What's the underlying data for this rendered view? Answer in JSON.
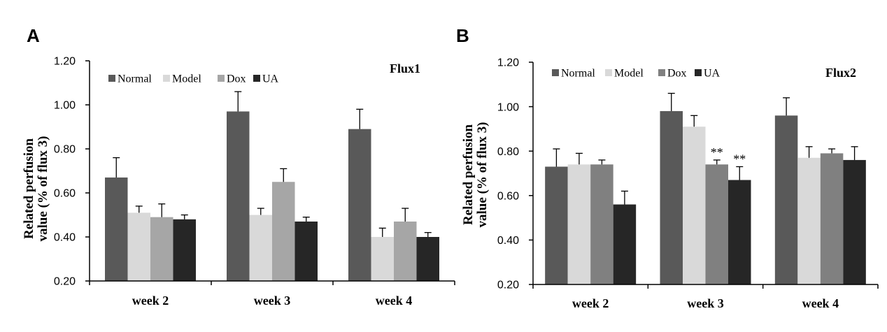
{
  "chart_data": [
    {
      "panel": "A",
      "type": "bar",
      "title": "Flux1",
      "ylabel": [
        "Related perfusion",
        "value (% of flux 3)"
      ],
      "ylim": [
        0.2,
        1.2
      ],
      "ytick_labels": [
        "0.20",
        "0.40",
        "0.60",
        "0.80",
        "1.00",
        "1.20"
      ],
      "categories": [
        "week 2",
        "week 3",
        "week 4"
      ],
      "series": [
        {
          "name": "Normal",
          "color": "#595959",
          "values": [
            0.67,
            0.97,
            0.89
          ],
          "errors": [
            0.09,
            0.09,
            0.09
          ]
        },
        {
          "name": "Model",
          "color": "#d9d9d9",
          "values": [
            0.51,
            0.5,
            0.4
          ],
          "errors": [
            0.03,
            0.03,
            0.04
          ]
        },
        {
          "name": "Dox",
          "color": "#a6a6a6",
          "values": [
            0.49,
            0.65,
            0.47
          ],
          "errors": [
            0.06,
            0.06,
            0.06
          ]
        },
        {
          "name": "UA",
          "color": "#262626",
          "values": [
            0.48,
            0.47,
            0.4
          ],
          "errors": [
            0.02,
            0.02,
            0.02
          ]
        }
      ],
      "annotations": []
    },
    {
      "panel": "B",
      "type": "bar",
      "title": "Flux2",
      "ylabel": [
        "Related perfusion",
        "value (% of flux 3)"
      ],
      "ylim": [
        0.2,
        1.2
      ],
      "ytick_labels": [
        "0.20",
        "0.40",
        "0.60",
        "0.80",
        "1.00",
        "1.20"
      ],
      "categories": [
        "week 2",
        "week 3",
        "week 4"
      ],
      "series": [
        {
          "name": "Normal",
          "color": "#595959",
          "values": [
            0.73,
            0.98,
            0.96
          ],
          "errors": [
            0.08,
            0.08,
            0.08
          ]
        },
        {
          "name": "Model",
          "color": "#d9d9d9",
          "values": [
            0.74,
            0.91,
            0.77
          ],
          "errors": [
            0.05,
            0.05,
            0.05
          ]
        },
        {
          "name": "Dox",
          "color": "#808080",
          "values": [
            0.74,
            0.74,
            0.79
          ],
          "errors": [
            0.02,
            0.02,
            0.02
          ]
        },
        {
          "name": "UA",
          "color": "#262626",
          "values": [
            0.56,
            0.67,
            0.76
          ],
          "errors": [
            0.06,
            0.06,
            0.06
          ]
        }
      ],
      "annotations": [
        {
          "series": "Dox",
          "category": "week 3",
          "text": "**"
        },
        {
          "series": "UA",
          "category": "week 3",
          "text": "**"
        }
      ]
    }
  ]
}
